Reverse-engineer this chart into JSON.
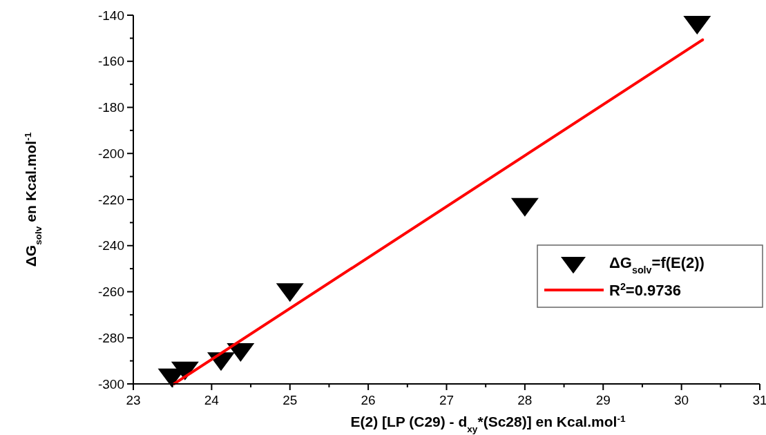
{
  "chart_data": {
    "type": "scatter",
    "xlabel": "E(2) [LP (C29) - d$_{xy}$*(Sc28)] en Kcal.mol$^{-1}$",
    "ylabel": "ΔG$_{solv}$ en Kcal.mol$^{-1}$",
    "xlim": [
      23,
      31
    ],
    "ylim": [
      -300,
      -140
    ],
    "xticks": [
      23,
      {
        "value": 23.5,
        "label": null
      },
      24,
      {
        "value": 24.5,
        "label": null
      },
      25,
      {
        "value": 25.5,
        "label": null
      },
      26,
      {
        "value": 26.5,
        "label": null
      },
      27,
      {
        "value": 27.5,
        "label": null
      },
      28,
      {
        "value": 28.5,
        "label": null
      },
      29,
      {
        "value": 29.5,
        "label": null
      },
      30,
      {
        "value": 30.5,
        "label": null
      },
      31
    ],
    "yticks": [
      -300,
      {
        "value": -290,
        "label": null
      },
      -280,
      {
        "value": -270,
        "label": null
      },
      -260,
      {
        "value": -250,
        "label": null
      },
      -240,
      {
        "value": -230,
        "label": null
      },
      -220,
      {
        "value": -210,
        "label": null
      },
      -200,
      {
        "value": -190,
        "label": null
      },
      -180,
      {
        "value": -170,
        "label": null
      },
      -160,
      {
        "value": -150,
        "label": null
      },
      -140
    ],
    "grid": false,
    "legend": "right",
    "series": [
      {
        "name": "ΔG$_{solv}$=f(E(2))",
        "marker": "triangle",
        "color": "#000000",
        "x": [
          23.49,
          23.66,
          24.12,
          24.37,
          25.0,
          28.0,
          30.2
        ],
        "values": [
          -296,
          -293,
          -289,
          -285,
          -259,
          -222,
          -143
        ]
      },
      {
        "name": "R$^{2}$=0.9736",
        "type": "line",
        "marker": "none",
        "color": "#ff0000",
        "line_style": "solid",
        "x": [
          23.52,
          30.27
        ],
        "values": [
          -300,
          -150.7
        ]
      }
    ]
  }
}
